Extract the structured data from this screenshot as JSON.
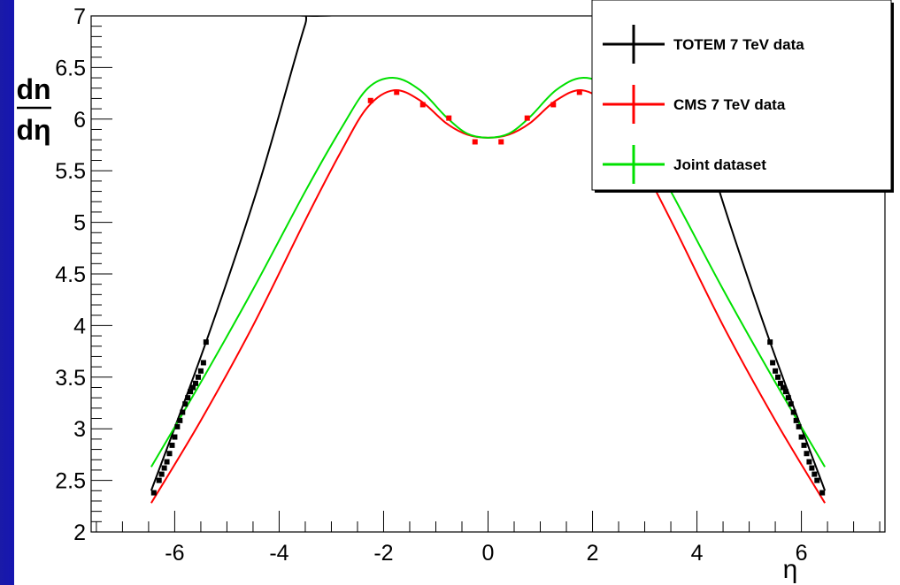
{
  "chart_data": {
    "type": "scatter",
    "title": "",
    "xlabel": "η",
    "ylabel_num": "dn",
    "ylabel_den": "dη",
    "xlim": [
      -7.6,
      7.6
    ],
    "ylim": [
      2,
      7
    ],
    "xticks": [
      -6,
      -4,
      -2,
      0,
      2,
      4,
      6
    ],
    "xtick_labels": [
      "-6",
      "-4",
      "-2",
      "0",
      "2",
      "4",
      "6"
    ],
    "yticks": [
      2,
      2.5,
      3,
      3.5,
      4,
      4.5,
      5,
      5.5,
      6,
      6.5,
      7
    ],
    "ytick_labels": [
      "2",
      "2.5",
      "3",
      "3.5",
      "4",
      "4.5",
      "5",
      "5.5",
      "6",
      "6.5",
      "7"
    ],
    "grid": false,
    "legend_position": "top-right",
    "series": [
      {
        "name": "TOTEM 7 TeV data",
        "color": "#000000",
        "kind": "points",
        "x": [
          -6.4,
          -6.3,
          -6.25,
          -6.2,
          -6.15,
          -6.1,
          -6.05,
          -6.0,
          -5.95,
          -5.9,
          -5.85,
          -5.8,
          -5.75,
          -5.7,
          -5.65,
          -5.6,
          -5.55,
          -5.5,
          -5.45,
          -5.4,
          5.4,
          5.45,
          5.5,
          5.55,
          5.6,
          5.65,
          5.7,
          5.75,
          5.8,
          5.85,
          5.9,
          5.95,
          6.0,
          6.05,
          6.1,
          6.15,
          6.2,
          6.25,
          6.3,
          6.4
        ],
        "y": [
          2.38,
          2.5,
          2.56,
          2.62,
          2.68,
          2.76,
          2.84,
          2.92,
          3.02,
          3.08,
          3.16,
          3.24,
          3.3,
          3.36,
          3.4,
          3.44,
          3.5,
          3.56,
          3.64,
          3.84,
          3.84,
          3.64,
          3.56,
          3.5,
          3.44,
          3.4,
          3.36,
          3.3,
          3.24,
          3.16,
          3.08,
          3.02,
          2.92,
          2.84,
          2.76,
          2.68,
          2.62,
          2.56,
          2.5,
          2.38
        ]
      },
      {
        "name": "CMS 7 TeV data",
        "color": "#ff0000",
        "kind": "points",
        "x": [
          -2.25,
          -1.75,
          -1.25,
          -0.75,
          -0.25,
          0.25,
          0.75,
          1.25,
          1.75,
          2.25
        ],
        "y": [
          6.18,
          6.26,
          6.14,
          6.01,
          5.78,
          5.78,
          6.01,
          6.14,
          6.26,
          6.18
        ]
      },
      {
        "name": "Joint dataset",
        "color": "#00e000",
        "kind": "legend-only",
        "x": [],
        "y": []
      }
    ],
    "fits": [
      {
        "series": "TOTEM 7 TeV data",
        "color": "#000000",
        "x": [
          -6.45,
          -5.4,
          -4.4,
          -3.5,
          -3.35
        ],
        "y": [
          2.4,
          3.84,
          5.35,
          6.92,
          7.0
        ],
        "mirror": true
      },
      {
        "series": "CMS 7 TeV data",
        "color": "#ff0000",
        "x": [
          -6.45,
          -5.5,
          -4.5,
          -3.5,
          -2.8,
          -2.3,
          -1.8,
          -1.3,
          -0.8,
          -0.4,
          0.0
        ],
        "y": [
          2.28,
          3.08,
          4.0,
          5.02,
          5.7,
          6.12,
          6.28,
          6.18,
          5.96,
          5.85,
          5.82
        ],
        "mirror": true
      },
      {
        "series": "Joint dataset",
        "color": "#00e000",
        "x": [
          -6.45,
          -5.5,
          -4.5,
          -3.5,
          -2.8,
          -2.3,
          -1.8,
          -1.3,
          -0.8,
          -0.4,
          0.0
        ],
        "y": [
          2.63,
          3.45,
          4.35,
          5.3,
          5.92,
          6.3,
          6.4,
          6.28,
          6.02,
          5.86,
          5.82
        ],
        "mirror": true
      }
    ]
  }
}
